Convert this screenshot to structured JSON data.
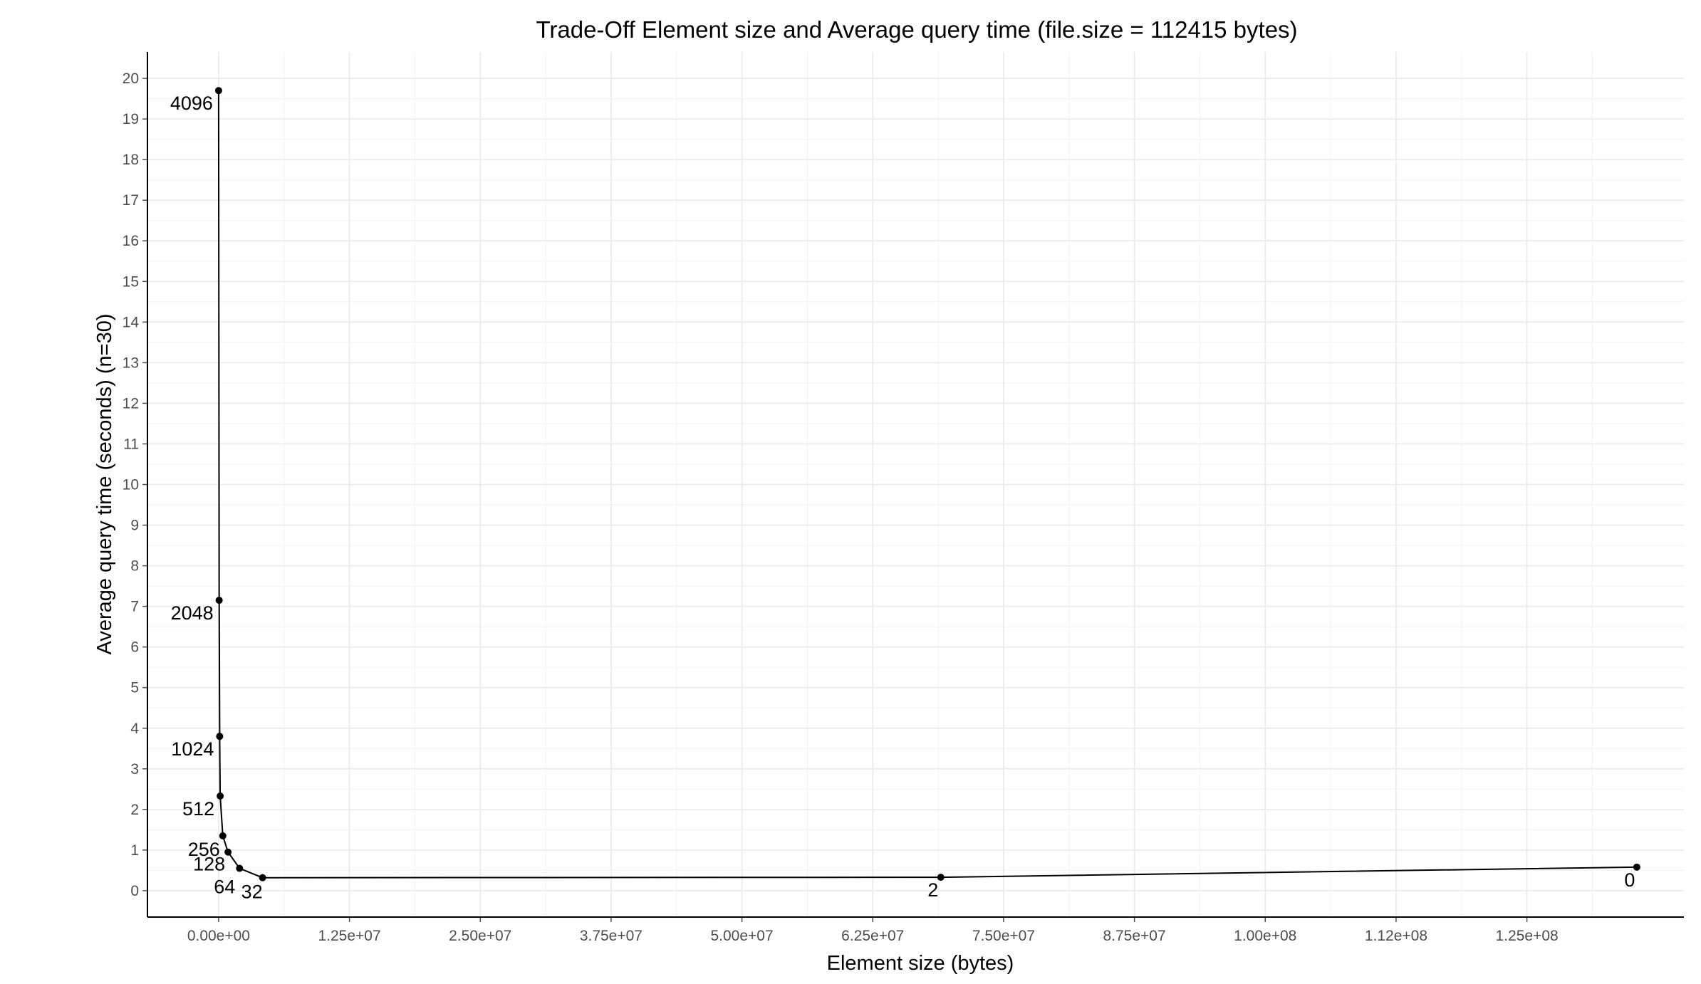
{
  "chart_data": {
    "type": "line",
    "title": "Trade-Off Element size and Average query time (file.size = 112415 bytes)",
    "xlabel": "Element size (bytes)",
    "ylabel": "Average query time (seconds) (n=30)",
    "xlim": [
      -6800000,
      140000000
    ],
    "ylim": [
      -0.65,
      20.65
    ],
    "x_ticks": [
      {
        "value": 0,
        "label": "0.00e+00"
      },
      {
        "value": 12500000,
        "label": "1.25e+07"
      },
      {
        "value": 25000000,
        "label": "2.50e+07"
      },
      {
        "value": 37500000,
        "label": "3.75e+07"
      },
      {
        "value": 50000000,
        "label": "5.00e+07"
      },
      {
        "value": 62500000,
        "label": "6.25e+07"
      },
      {
        "value": 75000000,
        "label": "7.50e+07"
      },
      {
        "value": 87500000,
        "label": "8.75e+07"
      },
      {
        "value": 100000000,
        "label": "1.00e+08"
      },
      {
        "value": 112500000,
        "label": "1.12e+08"
      },
      {
        "value": 125000000,
        "label": "1.25e+08"
      }
    ],
    "y_ticks": [
      {
        "value": 0,
        "label": "0"
      },
      {
        "value": 1,
        "label": "1"
      },
      {
        "value": 2,
        "label": "2"
      },
      {
        "value": 3,
        "label": "3"
      },
      {
        "value": 4,
        "label": "4"
      },
      {
        "value": 5,
        "label": "5"
      },
      {
        "value": 6,
        "label": "6"
      },
      {
        "value": 7,
        "label": "7"
      },
      {
        "value": 8,
        "label": "8"
      },
      {
        "value": 9,
        "label": "9"
      },
      {
        "value": 10,
        "label": "10"
      },
      {
        "value": 11,
        "label": "11"
      },
      {
        "value": 12,
        "label": "12"
      },
      {
        "value": 13,
        "label": "13"
      },
      {
        "value": 14,
        "label": "14"
      },
      {
        "value": 15,
        "label": "15"
      },
      {
        "value": 16,
        "label": "16"
      },
      {
        "value": 17,
        "label": "17"
      },
      {
        "value": 18,
        "label": "18"
      },
      {
        "value": 19,
        "label": "19"
      },
      {
        "value": 20,
        "label": "20"
      }
    ],
    "grid": true,
    "points": [
      {
        "label": "4096",
        "x": 0,
        "y": 19.7
      },
      {
        "label": "2048",
        "x": 50000,
        "y": 7.15
      },
      {
        "label": "1024",
        "x": 100000,
        "y": 3.8
      },
      {
        "label": "512",
        "x": 150000,
        "y": 2.33
      },
      {
        "label": "256",
        "x": 400000,
        "y": 1.35
      },
      {
        "label": "128",
        "x": 900000,
        "y": 0.95
      },
      {
        "label": "64",
        "x": 2000000,
        "y": 0.55
      },
      {
        "label": "32",
        "x": 4200000,
        "y": 0.32
      },
      {
        "label": "2",
        "x": 69000000,
        "y": 0.33
      },
      {
        "label": "0",
        "x": 135500000,
        "y": 0.58
      }
    ]
  },
  "colors": {
    "background": "#ffffff",
    "grid_major": "#ebebeb",
    "grid_minor": "#f4f4f4",
    "axis": "#000000",
    "tick_text": "#4d4d4d",
    "line": "#000000",
    "point": "#000000"
  }
}
